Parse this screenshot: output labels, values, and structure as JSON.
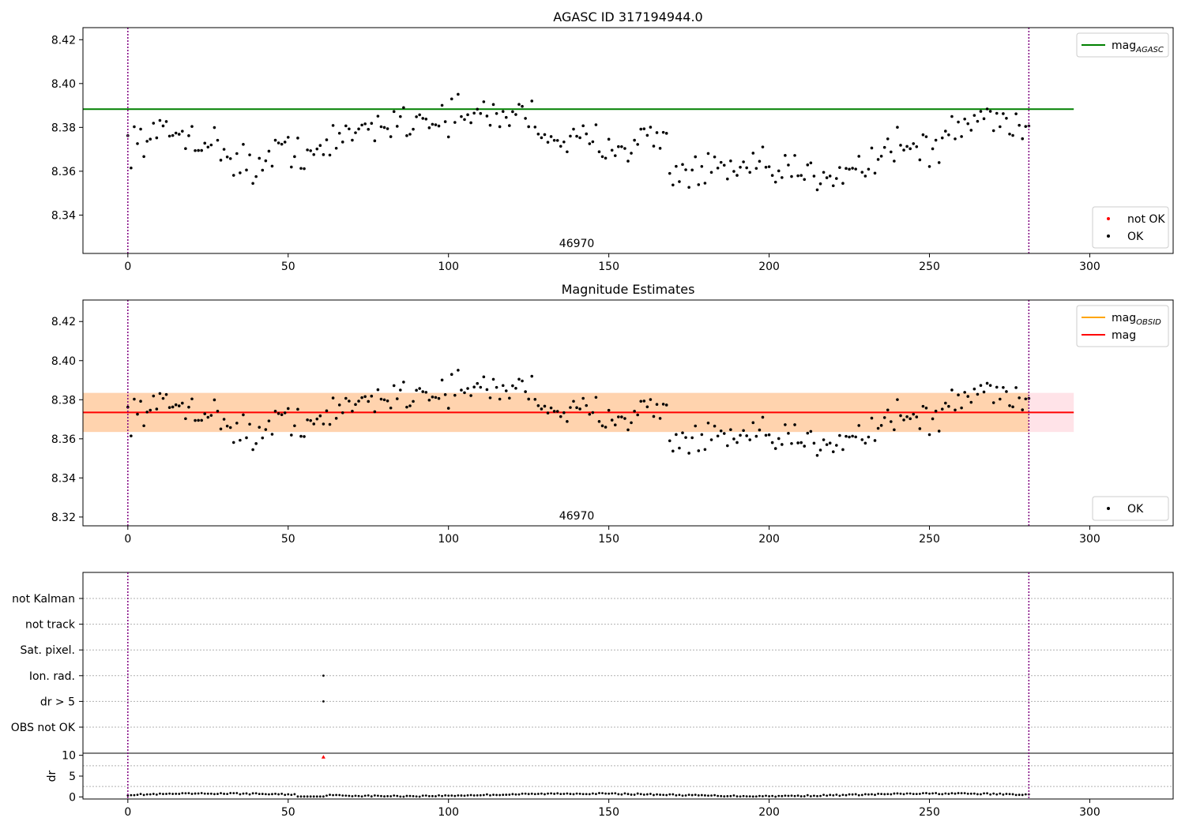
{
  "chart_data": [
    {
      "type": "scatter",
      "title": "AGASC ID 317194944.0",
      "xlim": [
        -14,
        326
      ],
      "ylim": [
        8.3225,
        8.4255
      ],
      "xticks": [
        0,
        50,
        100,
        150,
        200,
        250,
        300
      ],
      "yticks": [
        8.34,
        8.36,
        8.38,
        8.4,
        8.42
      ],
      "grid": false,
      "obsid_label": "46970",
      "obsid_label_x": 140,
      "obsid_boundaries": [
        0,
        281
      ],
      "reference_lines": [
        {
          "name": "mag_AGASC",
          "y": 8.3883,
          "x_range": [
            -14,
            295
          ],
          "color": "#008000"
        }
      ],
      "legend_top": [
        {
          "label": "mag",
          "sub": "AGASC",
          "color": "#008000",
          "kind": "line"
        }
      ],
      "legend_bottom": [
        {
          "label": "not OK",
          "color": "#ff0000",
          "kind": "dot"
        },
        {
          "label": "OK",
          "color": "#000000",
          "kind": "dot"
        }
      ],
      "legend_placement": [
        "upper right",
        "lower right"
      ],
      "series": [
        {
          "name": "OK",
          "color": "#000000"
        },
        {
          "name": "not OK",
          "color": "#ff0000",
          "x": [],
          "y": []
        }
      ]
    },
    {
      "type": "scatter",
      "title": "Magnitude Estimates",
      "xlim": [
        -14,
        326
      ],
      "ylim": [
        8.3155,
        8.431
      ],
      "xticks": [
        0,
        50,
        100,
        150,
        200,
        250,
        300
      ],
      "yticks": [
        8.32,
        8.34,
        8.36,
        8.38,
        8.4,
        8.42
      ],
      "grid": false,
      "obsid_label": "46970",
      "obsid_label_x": 140,
      "obsid_boundaries": [
        0,
        281
      ],
      "reference_lines": [
        {
          "name": "mag",
          "y": 8.3735,
          "x_range": [
            -14,
            295
          ],
          "color": "#ff0000"
        }
      ],
      "bands": [
        {
          "y_range": [
            8.3635,
            8.3835
          ],
          "x_range": [
            -14,
            295
          ],
          "color": "#ffc0cb",
          "opacity": 0.45
        },
        {
          "y_range": [
            8.3635,
            8.3835
          ],
          "x_range": [
            -14,
            281
          ],
          "color": "#ffa500",
          "opacity": 0.25
        }
      ],
      "legend_top": [
        {
          "label": "mag",
          "sub": "OBSID",
          "color": "#ffa500",
          "kind": "line"
        },
        {
          "label": "mag",
          "sub": "",
          "color": "#ff0000",
          "kind": "line"
        }
      ],
      "legend_bottom": [
        {
          "label": "OK",
          "color": "#000000",
          "kind": "dot"
        }
      ],
      "legend_placement": [
        "upper right",
        "lower right"
      ],
      "series": [
        {
          "name": "OK",
          "color": "#000000"
        }
      ]
    },
    {
      "type": "scatter",
      "title": "",
      "xlim": [
        -14,
        326
      ],
      "xticks": [
        0,
        50,
        100,
        150,
        200,
        250,
        300
      ],
      "flag_rows": [
        "not Kalman",
        "not track",
        "Sat. pixel.",
        "Ion. rad.",
        "dr > 5",
        "OBS not OK"
      ],
      "flag_points": [
        {
          "flag": "Ion. rad.",
          "x": [
            61
          ]
        },
        {
          "flag": "dr > 5",
          "x": [
            61
          ]
        }
      ],
      "dr": {
        "ylabel": "dr",
        "ylim": [
          -0.5,
          10.5
        ],
        "yticks": [
          0,
          5,
          10
        ],
        "outlier": {
          "x": 61,
          "y": 9.6,
          "color": "#ff0000"
        }
      },
      "obsid_boundaries": [
        0,
        281
      ],
      "grid": "dotted horizontal"
    }
  ]
}
